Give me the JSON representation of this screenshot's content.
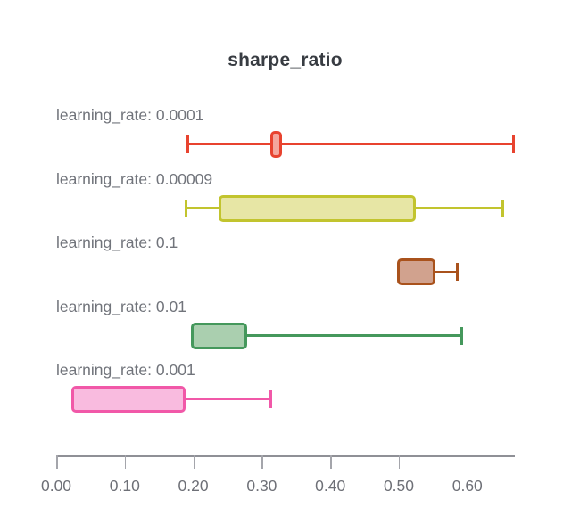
{
  "chart_data": {
    "type": "boxplot",
    "orientation": "horizontal",
    "title": "sharpe_ratio",
    "xlabel": "",
    "ylabel": "",
    "xlim": [
      0,
      0.668
    ],
    "x_ticks": [
      0.0,
      0.1,
      0.2,
      0.3,
      0.4,
      0.5,
      0.6
    ],
    "x_tick_labels": [
      "0.00",
      "0.10",
      "0.20",
      "0.30",
      "0.40",
      "0.50",
      "0.60"
    ],
    "grid": false,
    "legend": "none",
    "series": [
      {
        "label": "learning_rate: 0.0001",
        "whisker_low": 0.192,
        "q1": 0.313,
        "q3": 0.329,
        "whisker_high": 0.667,
        "stroke": "#e8432f",
        "fill": "#f4a79d"
      },
      {
        "label": "learning_rate: 0.00009",
        "whisker_low": 0.189,
        "q1": 0.237,
        "q3": 0.525,
        "whisker_high": 0.652,
        "stroke": "#c2c42e",
        "fill": "#e7e6a5"
      },
      {
        "label": "learning_rate: 0.1",
        "whisker_low": 0.498,
        "q1": 0.498,
        "q3": 0.553,
        "whisker_high": 0.585,
        "stroke": "#a9521c",
        "fill": "#d1a28e"
      },
      {
        "label": "learning_rate: 0.01",
        "whisker_low": 0.196,
        "q1": 0.196,
        "q3": 0.279,
        "whisker_high": 0.592,
        "stroke": "#45985c",
        "fill": "#aacfaf"
      },
      {
        "label": "learning_rate: 0.001",
        "whisker_low": 0.022,
        "q1": 0.022,
        "q3": 0.189,
        "whisker_high": 0.313,
        "stroke": "#f158a8",
        "fill": "#f9bbdf"
      }
    ],
    "axis_color": "#8f9096",
    "tick_color": "#a4a5ab",
    "tick_label_color": "#6e7077",
    "row_label_color": "#71747b",
    "title_color": "#383c42"
  }
}
